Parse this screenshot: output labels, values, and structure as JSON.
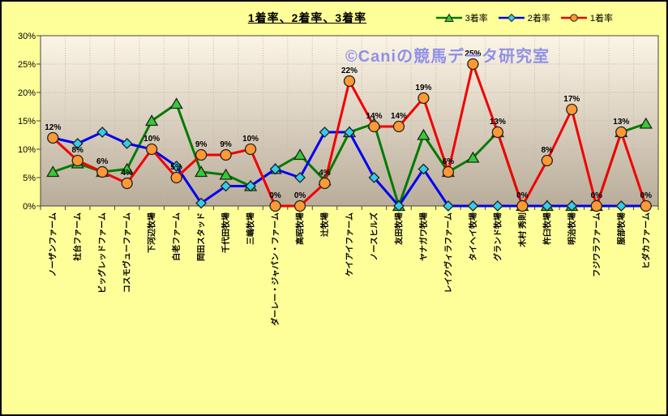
{
  "title": "1着率、2着率、3着率",
  "watermark": "©Caniの競馬データ研究室",
  "legend": [
    {
      "label": "3着率",
      "marker": "triangle",
      "line_color": "#007A00",
      "marker_fill": "#33CC33"
    },
    {
      "label": "2着率",
      "marker": "diamond",
      "line_color": "#0000F0",
      "marker_fill": "#33CCEE"
    },
    {
      "label": "1着率",
      "marker": "circle",
      "line_color": "#F00000",
      "marker_fill": "#FF9933"
    }
  ],
  "colors": {
    "background": "#FFFF99",
    "plot_gradient_top": "#FCF5E6",
    "plot_gradient_bottom": "#B9AC9A",
    "gridline": "#C4B8A4",
    "axis": "#444444",
    "marker_outline": "#222222",
    "watermark": "#9191E8"
  },
  "chart_data": {
    "type": "line",
    "title": "1着率、2着率、3着率",
    "xlabel": "",
    "ylabel": "",
    "ylim": [
      0,
      30
    ],
    "yticks": [
      "0%",
      "5%",
      "10%",
      "15%",
      "20%",
      "25%",
      "30%"
    ],
    "grid": true,
    "legend_position": "top-right",
    "categories": [
      "ノーザンファーム",
      "社台ファーム",
      "ビッグレッドファーム",
      "コスモヴューファーム",
      "下河辺牧場",
      "白老ファーム",
      "岡田スタッド",
      "千代田牧場",
      "三嶋牧場",
      "ダーレー・ジャパン・ファーム",
      "高昭牧場",
      "辻牧場",
      "ケイアイファーム",
      "ノースヒルズ",
      "友田牧場",
      "ヤナガワ牧場",
      "レイクヴィラファーム",
      "タイヘイ牧場",
      "グランド牧場",
      "木村 秀則",
      "杵臼牧場",
      "明治牧場",
      "フジワラファーム",
      "服部牧場",
      "ヒダカファーム"
    ],
    "series": [
      {
        "name": "3着率",
        "marker": "triangle",
        "values": [
          6,
          7.5,
          6,
          6.5,
          15,
          18,
          6,
          5.5,
          3.5,
          6.5,
          9,
          4.5,
          13,
          14.5,
          0,
          12.5,
          6,
          8.5,
          13,
          0,
          0,
          0,
          0,
          13,
          14.5
        ]
      },
      {
        "name": "2着率",
        "marker": "diamond",
        "values": [
          12,
          11,
          13,
          11,
          10,
          7,
          0.5,
          3.5,
          3.5,
          6.5,
          5,
          13,
          13,
          5,
          0,
          6.5,
          0,
          0,
          0,
          0,
          0,
          0,
          0,
          0,
          0
        ]
      },
      {
        "name": "1着率",
        "marker": "circle",
        "values": [
          12,
          8,
          6,
          4,
          10,
          5,
          9,
          9,
          10,
          0,
          0,
          4,
          22,
          14,
          14,
          19,
          6,
          25,
          13,
          0,
          8,
          17,
          0,
          13,
          0
        ],
        "data_labels": [
          "12%",
          "8%",
          "6%",
          "4%",
          "10%",
          "5%",
          "9%",
          "9%",
          "10%",
          "0%",
          "0%",
          "4%",
          "22%",
          "14%",
          "14%",
          "19%",
          "6%",
          "25%",
          "13%",
          "0%",
          "8%",
          "17%",
          "0%",
          "13%",
          "0%"
        ]
      }
    ]
  }
}
